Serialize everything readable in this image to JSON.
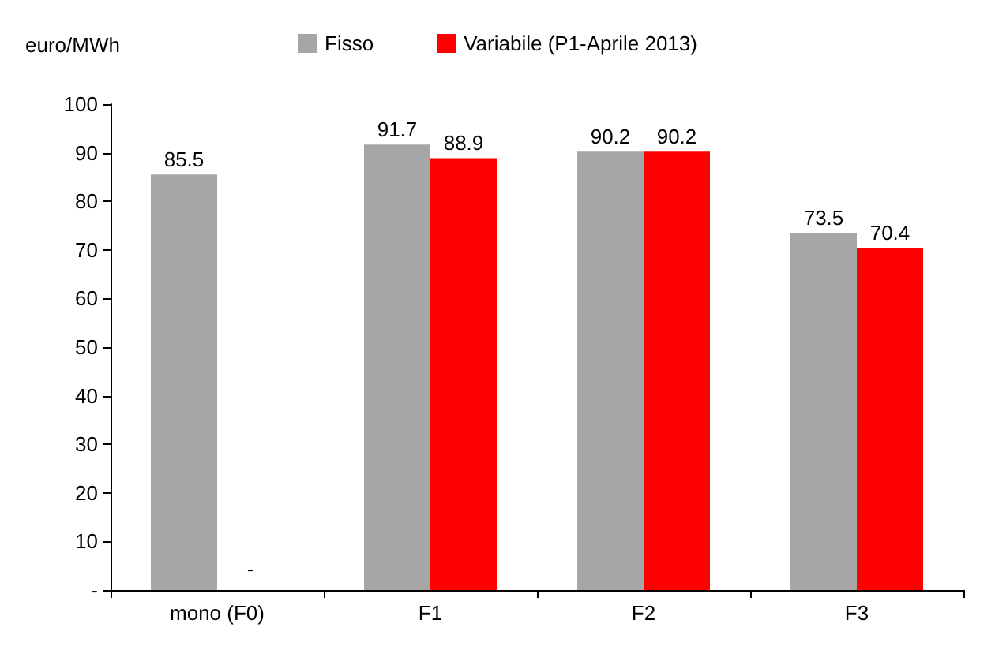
{
  "chart_data": {
    "type": "bar",
    "ylabel": "euro/MWh",
    "categories": [
      "mono (F0)",
      "F1",
      "F2",
      "F3"
    ],
    "series": [
      {
        "name": "Fisso",
        "color": "#a6a6a6",
        "values": [
          85.5,
          91.7,
          90.2,
          73.5
        ],
        "value_labels": [
          "85.5",
          "91.7",
          "90.2",
          "73.5"
        ]
      },
      {
        "name": "Variabile (P1-Aprile 2013)",
        "color": "#ff0000",
        "values": [
          null,
          88.9,
          90.2,
          70.4
        ],
        "value_labels": [
          null,
          "88.9",
          "90.2",
          "70.4"
        ]
      }
    ],
    "ylim": [
      0,
      100
    ],
    "yticks": [
      {
        "value": 0,
        "label": "-"
      },
      10,
      20,
      30,
      40,
      50,
      60,
      70,
      80,
      90,
      100
    ],
    "annotations": [
      {
        "text": "-",
        "x": "mono (F0)",
        "y": 0
      }
    ],
    "grid": false,
    "legend": "top"
  }
}
